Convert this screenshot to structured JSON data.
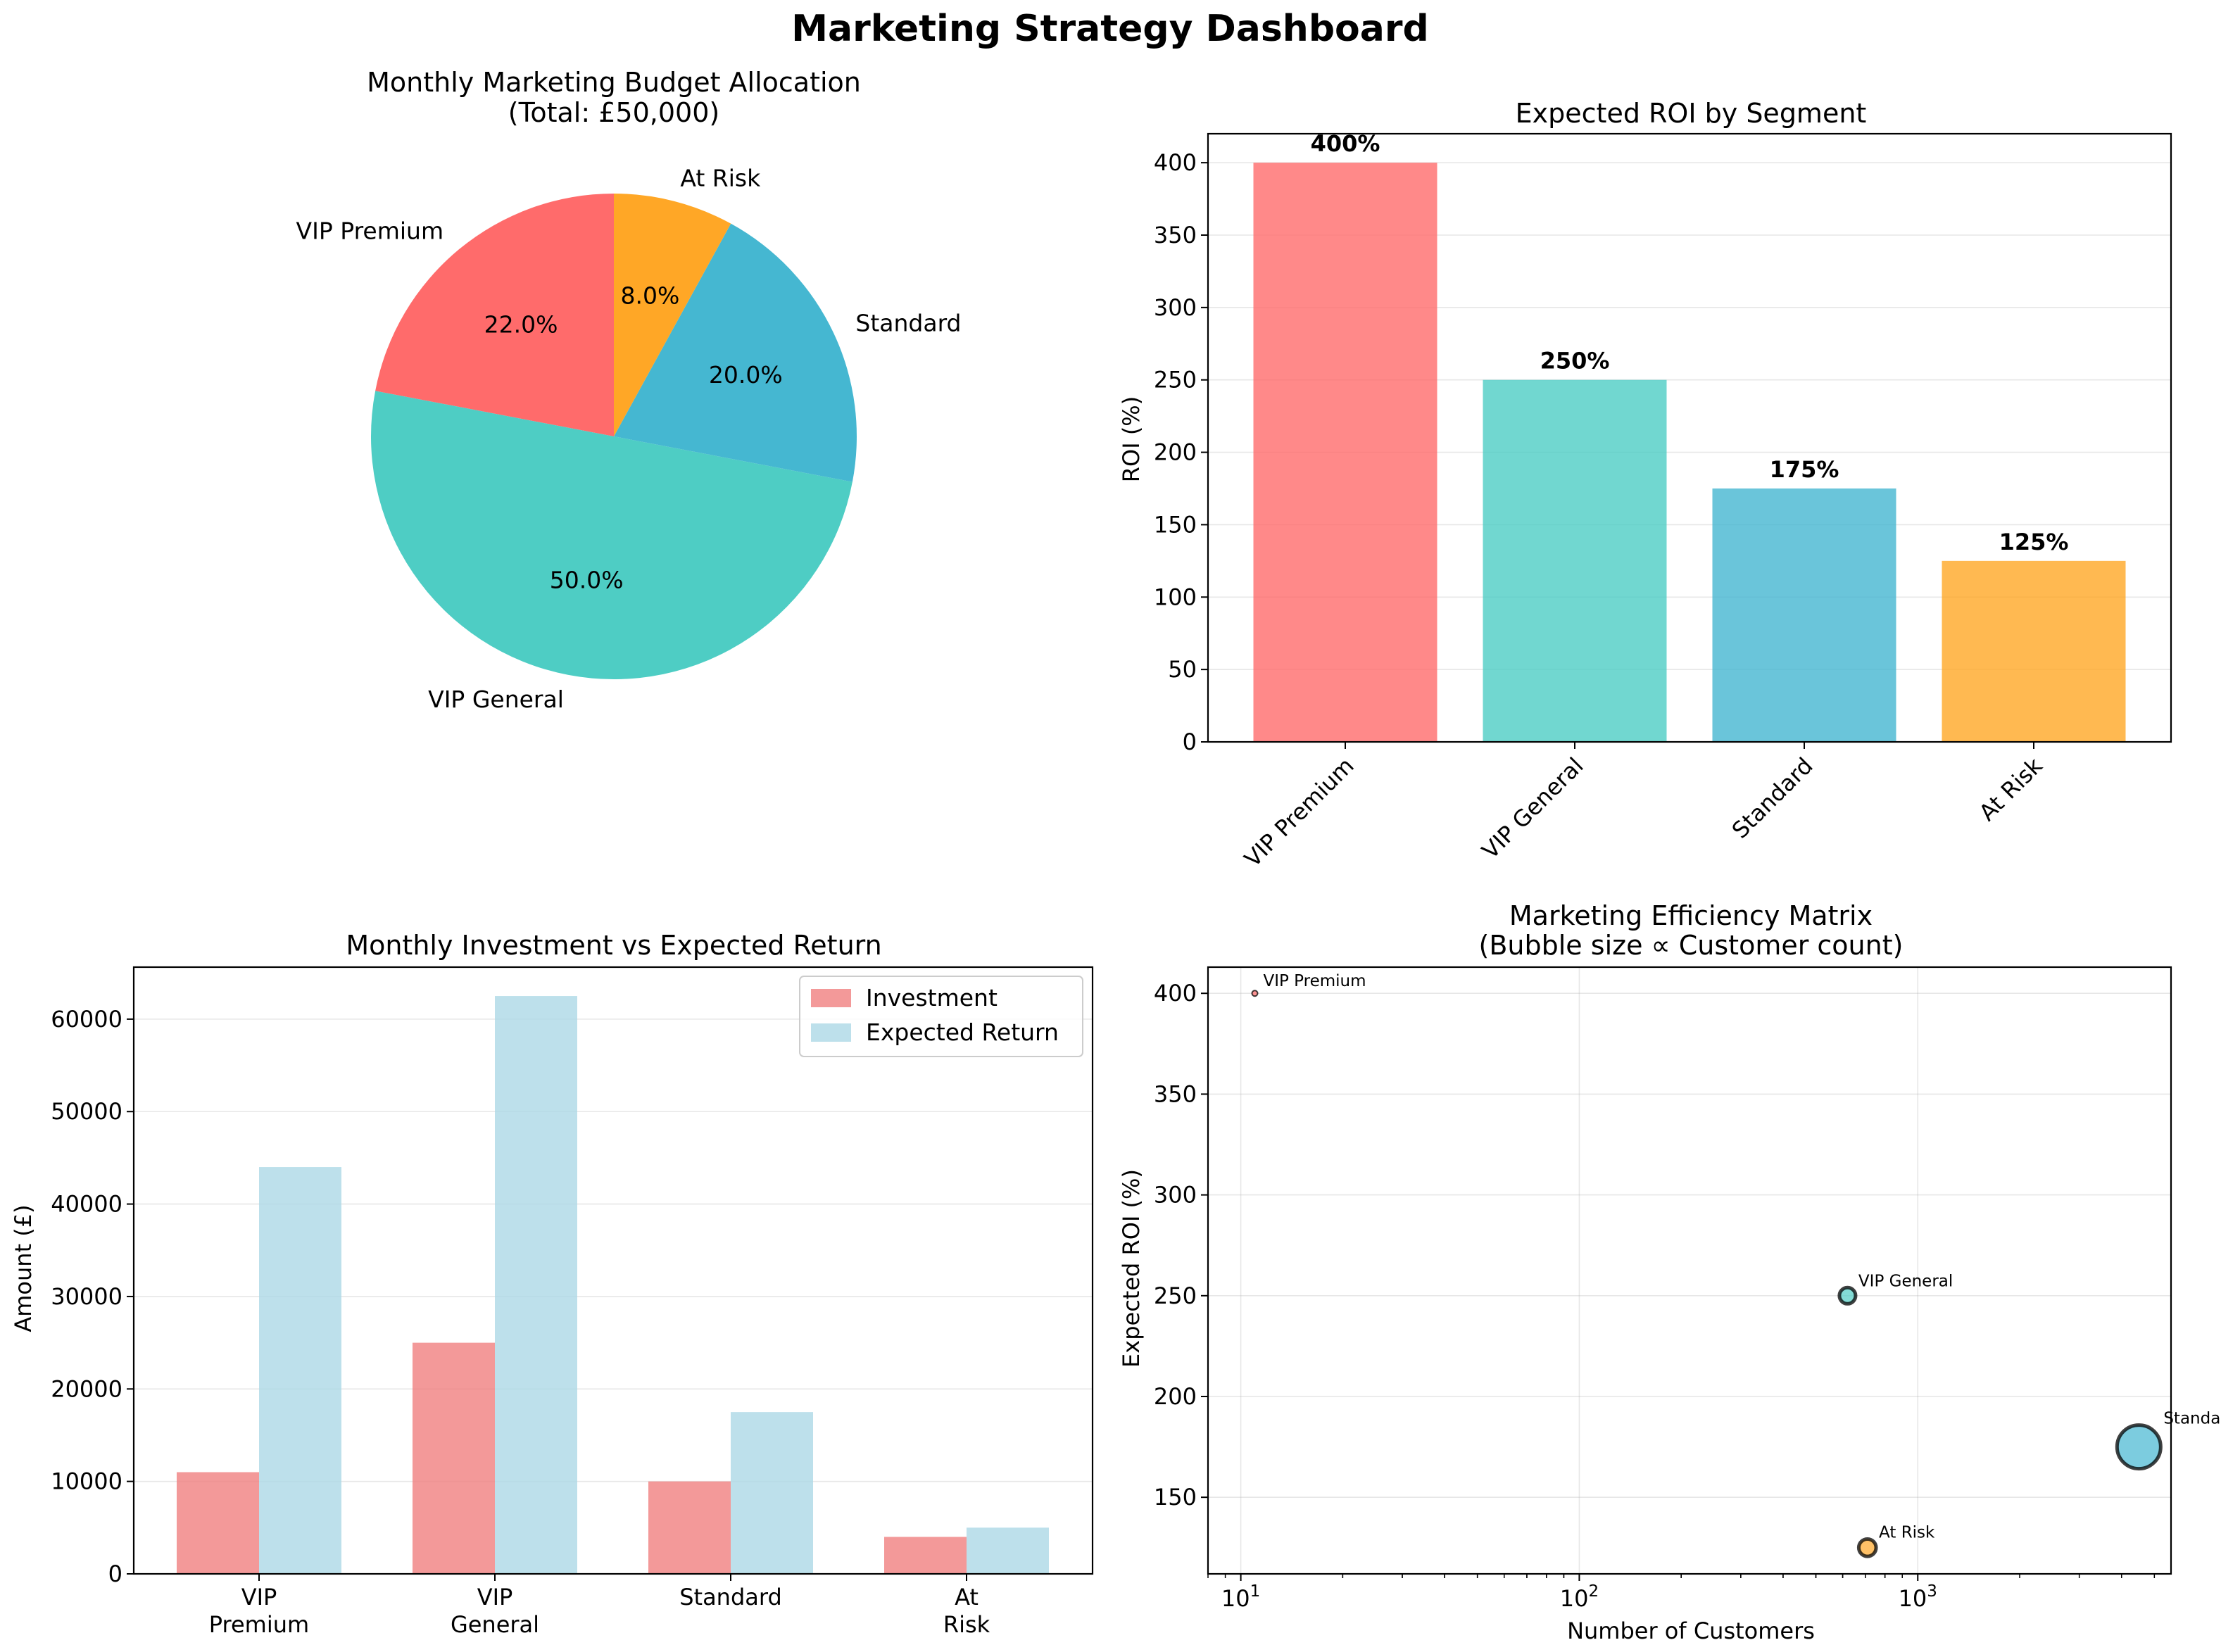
{
  "page_title": "Marketing Strategy Dashboard",
  "chart_data": [
    {
      "type": "pie",
      "title": "Monthly Marketing Budget Allocation",
      "subtitle": "(Total: £50,000)",
      "labels": [
        "VIP Premium",
        "VIP General",
        "Standard",
        "At Risk"
      ],
      "values": [
        22.0,
        50.0,
        20.0,
        8.0
      ],
      "value_labels": [
        "22.0%",
        "50.0%",
        "20.0%",
        "8.0%"
      ],
      "colors": [
        "#ff6b6b",
        "#4ecdc4",
        "#45b7d1",
        "#ffa726"
      ],
      "start_angle_deg": 90,
      "direction": "counterclockwise"
    },
    {
      "type": "bar",
      "title": "Expected ROI by Segment",
      "xlabel": "",
      "ylabel": "ROI (%)",
      "categories": [
        "VIP Premium",
        "VIP General",
        "Standard",
        "At Risk"
      ],
      "values": [
        400,
        250,
        175,
        125
      ],
      "value_labels": [
        "400%",
        "250%",
        "175%",
        "125%"
      ],
      "colors": [
        "#ff6b6b",
        "#4ecdc4",
        "#45b7d1",
        "#ffa726"
      ],
      "ylim": [
        0,
        420
      ],
      "yticks": [
        0,
        50,
        100,
        150,
        200,
        250,
        300,
        350,
        400
      ],
      "grid": "y"
    },
    {
      "type": "bar",
      "title": "Monthly Investment vs Expected Return",
      "xlabel": "",
      "ylabel": "Amount (£)",
      "categories": [
        "VIP\nPremium",
        "VIP\nGeneral",
        "Standard",
        "At\nRisk"
      ],
      "series": [
        {
          "name": "Investment",
          "values": [
            11000,
            25000,
            10000,
            4000
          ],
          "color": "#f08080"
        },
        {
          "name": "Expected Return",
          "values": [
            44000,
            62500,
            17500,
            5000
          ],
          "color": "#add8e6"
        }
      ],
      "ylim": [
        0,
        65625
      ],
      "yticks": [
        0,
        10000,
        20000,
        30000,
        40000,
        50000,
        60000
      ],
      "legend": "top-right",
      "grid": "y"
    },
    {
      "type": "scatter",
      "title": "Marketing Efficiency Matrix",
      "subtitle": "(Bubble size ∝ Customer count)",
      "xlabel": "Number of Customers",
      "ylabel": "Expected ROI (%)",
      "x_scale": "log",
      "xlim": [
        8,
        5600
      ],
      "ylim": [
        112,
        413
      ],
      "xticks": [
        10,
        100,
        1000
      ],
      "xtick_labels": [
        {
          "base": "10",
          "exp": "1"
        },
        {
          "base": "10",
          "exp": "2"
        },
        {
          "base": "10",
          "exp": "3"
        }
      ],
      "yticks": [
        150,
        200,
        250,
        300,
        350,
        400
      ],
      "points": [
        {
          "label": "VIP Premium",
          "x": 11,
          "y": 400,
          "color": "#ff6b6b"
        },
        {
          "label": "VIP General",
          "x": 620,
          "y": 250,
          "color": "#4ecdc4"
        },
        {
          "label": "Standard",
          "x": 4500,
          "y": 175,
          "color": "#45b7d1"
        },
        {
          "label": "At Risk",
          "x": 710,
          "y": 125,
          "color": "#ffa726"
        }
      ],
      "grid": "both"
    }
  ]
}
